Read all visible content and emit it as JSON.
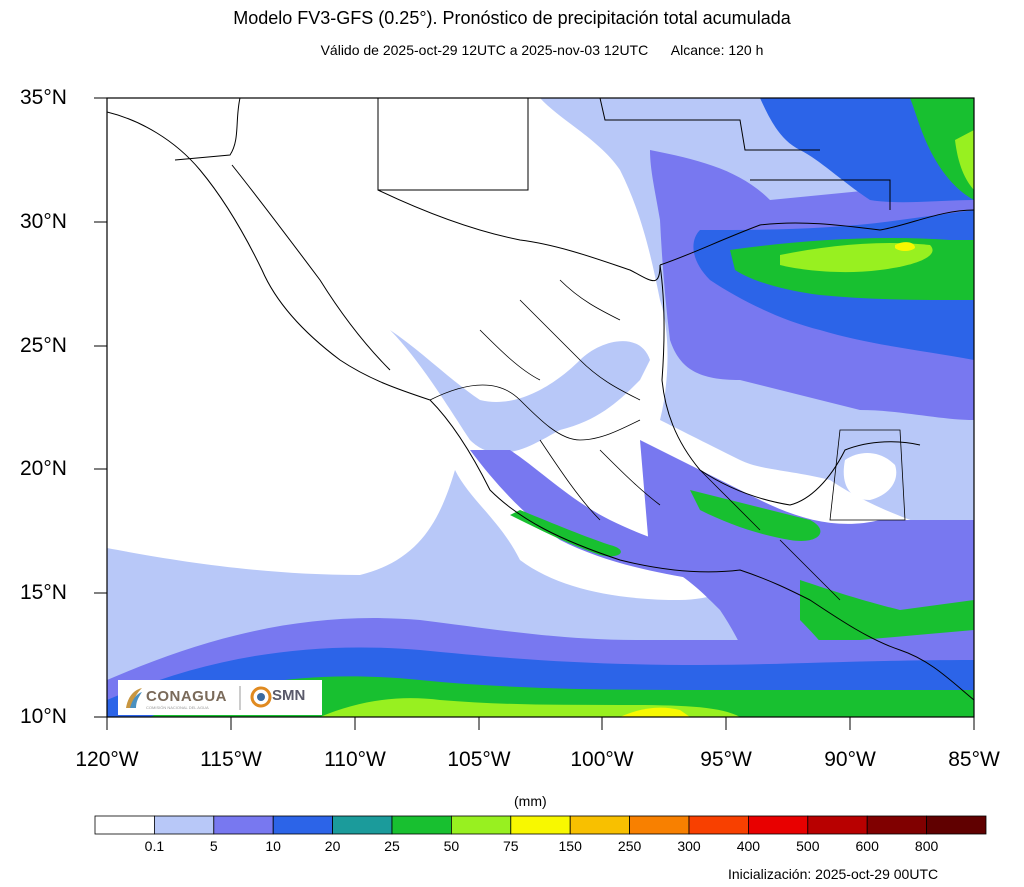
{
  "title": "Modelo FV3-GFS (0.25°). Pronóstico de precipitación total acumulada",
  "subtitle": "Válido de 2025-oct-29 12UTC a 2025-nov-03 12UTC      Alcance: 120 h",
  "lat_labels": [
    "35°N",
    "30°N",
    "25°N",
    "20°N",
    "15°N",
    "10°N"
  ],
  "lon_labels": [
    "120°W",
    "115°W",
    "110°W",
    "105°W",
    "100°W",
    "95°W",
    "90°W",
    "85°W"
  ],
  "colorbar": {
    "units": "(mm)",
    "thresholds": [
      "0.1",
      "5",
      "10",
      "20",
      "25",
      "50",
      "75",
      "150",
      "250",
      "300",
      "400",
      "500",
      "600",
      "800"
    ],
    "colors": [
      "#ffffff",
      "#b8c8f8",
      "#7878f0",
      "#2c64e8",
      "#1b9b9b",
      "#18c030",
      "#98f020",
      "#f8f800",
      "#f8c000",
      "#f88000",
      "#f84000",
      "#e80000",
      "#b80000",
      "#800000",
      "#600000"
    ]
  },
  "initialization": "Inicialización: 2025-oct-29 00UTC",
  "logos": {
    "left": "CONAGUA",
    "left_sub": "COMISIÓN NACIONAL DEL AGUA",
    "right": "SMN"
  }
}
